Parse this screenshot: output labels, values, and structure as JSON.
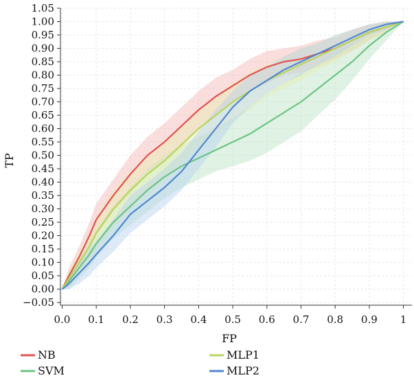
{
  "chart_data": {
    "type": "line",
    "title": "",
    "xlabel": "FP",
    "ylabel": "TP",
    "xlim": [
      -0.005,
      1.025
    ],
    "ylim": [
      -0.06,
      1.05
    ],
    "xticks": [
      0.0,
      0.1,
      0.2,
      0.3,
      0.4,
      0.5,
      0.6,
      0.7,
      0.8,
      0.9,
      1.0
    ],
    "xtick_labels": [
      "0.0",
      "0.1",
      "0.2",
      "0.3",
      "0.4",
      "0.5",
      "0.6",
      "0.7",
      "0.8",
      "0.9",
      "1"
    ],
    "yticks": [
      -0.05,
      0.0,
      0.05,
      0.1,
      0.15,
      0.2,
      0.25,
      0.3,
      0.35,
      0.4,
      0.45,
      0.5,
      0.55,
      0.6,
      0.65,
      0.7,
      0.75,
      0.8,
      0.85,
      0.9,
      0.95,
      1.0,
      1.05
    ],
    "ytick_labels": [
      "−0.05",
      "0.00",
      "0.05",
      "0.10",
      "0.15",
      "0.20",
      "0.25",
      "0.30",
      "0.35",
      "0.40",
      "0.45",
      "0.50",
      "0.55",
      "0.60",
      "0.65",
      "0.70",
      "0.75",
      "0.80",
      "0.85",
      "0.90",
      "0.95",
      "1.00",
      "1.05"
    ],
    "grid": true,
    "legend_position": "bottom",
    "series": [
      {
        "name": "NB",
        "color": "#e0524f",
        "band_color": "#f4b3b3",
        "x": [
          0.0,
          0.02,
          0.05,
          0.08,
          0.1,
          0.15,
          0.2,
          0.25,
          0.3,
          0.35,
          0.4,
          0.45,
          0.5,
          0.55,
          0.6,
          0.65,
          0.7,
          0.75,
          0.8,
          0.85,
          0.9,
          0.95,
          1.0
        ],
        "y": [
          0.0,
          0.05,
          0.12,
          0.2,
          0.26,
          0.35,
          0.43,
          0.5,
          0.55,
          0.61,
          0.67,
          0.72,
          0.76,
          0.8,
          0.83,
          0.85,
          0.86,
          0.88,
          0.9,
          0.93,
          0.96,
          0.98,
          1.0
        ],
        "spread": [
          0.0,
          0.03,
          0.04,
          0.05,
          0.06,
          0.06,
          0.07,
          0.07,
          0.07,
          0.07,
          0.07,
          0.07,
          0.06,
          0.06,
          0.06,
          0.05,
          0.05,
          0.05,
          0.04,
          0.04,
          0.03,
          0.02,
          0.0
        ]
      },
      {
        "name": "SVM",
        "color": "#6cc484",
        "band_color": "#b8e2c3",
        "x": [
          0.0,
          0.02,
          0.05,
          0.08,
          0.1,
          0.15,
          0.2,
          0.25,
          0.3,
          0.35,
          0.4,
          0.45,
          0.5,
          0.55,
          0.6,
          0.65,
          0.7,
          0.75,
          0.8,
          0.85,
          0.9,
          0.95,
          1.0
        ],
        "y": [
          0.0,
          0.03,
          0.08,
          0.13,
          0.17,
          0.25,
          0.31,
          0.37,
          0.42,
          0.46,
          0.49,
          0.52,
          0.55,
          0.58,
          0.62,
          0.66,
          0.7,
          0.75,
          0.8,
          0.85,
          0.91,
          0.96,
          1.0
        ],
        "spread": [
          0.0,
          0.03,
          0.04,
          0.05,
          0.05,
          0.06,
          0.07,
          0.08,
          0.08,
          0.08,
          0.08,
          0.08,
          0.09,
          0.1,
          0.11,
          0.11,
          0.11,
          0.1,
          0.09,
          0.07,
          0.05,
          0.03,
          0.0
        ]
      },
      {
        "name": "MLP1",
        "color": "#b7d55a",
        "band_color": "#e6edb0",
        "x": [
          0.0,
          0.02,
          0.05,
          0.08,
          0.1,
          0.15,
          0.2,
          0.25,
          0.3,
          0.35,
          0.4,
          0.45,
          0.5,
          0.55,
          0.6,
          0.65,
          0.7,
          0.75,
          0.8,
          0.85,
          0.9,
          0.95,
          1.0
        ],
        "y": [
          0.0,
          0.04,
          0.1,
          0.16,
          0.21,
          0.3,
          0.37,
          0.43,
          0.48,
          0.54,
          0.6,
          0.65,
          0.7,
          0.74,
          0.78,
          0.81,
          0.84,
          0.87,
          0.9,
          0.93,
          0.96,
          0.98,
          1.0
        ],
        "spread": [
          0.0,
          0.03,
          0.04,
          0.05,
          0.06,
          0.07,
          0.07,
          0.07,
          0.07,
          0.07,
          0.07,
          0.07,
          0.07,
          0.07,
          0.06,
          0.06,
          0.06,
          0.05,
          0.05,
          0.04,
          0.03,
          0.02,
          0.0
        ]
      },
      {
        "name": "MLP2",
        "color": "#4f88cf",
        "band_color": "#b6d0ef",
        "x": [
          0.0,
          0.02,
          0.05,
          0.08,
          0.1,
          0.15,
          0.2,
          0.25,
          0.3,
          0.35,
          0.4,
          0.45,
          0.5,
          0.55,
          0.6,
          0.65,
          0.7,
          0.75,
          0.8,
          0.85,
          0.9,
          0.95,
          1.0
        ],
        "y": [
          0.0,
          0.02,
          0.06,
          0.1,
          0.13,
          0.2,
          0.28,
          0.33,
          0.38,
          0.44,
          0.52,
          0.6,
          0.68,
          0.74,
          0.78,
          0.82,
          0.85,
          0.88,
          0.91,
          0.94,
          0.97,
          0.99,
          1.0
        ],
        "spread": [
          0.0,
          0.03,
          0.04,
          0.05,
          0.05,
          0.06,
          0.07,
          0.07,
          0.07,
          0.07,
          0.07,
          0.07,
          0.06,
          0.06,
          0.05,
          0.05,
          0.05,
          0.04,
          0.04,
          0.03,
          0.02,
          0.02,
          0.0
        ]
      }
    ]
  }
}
